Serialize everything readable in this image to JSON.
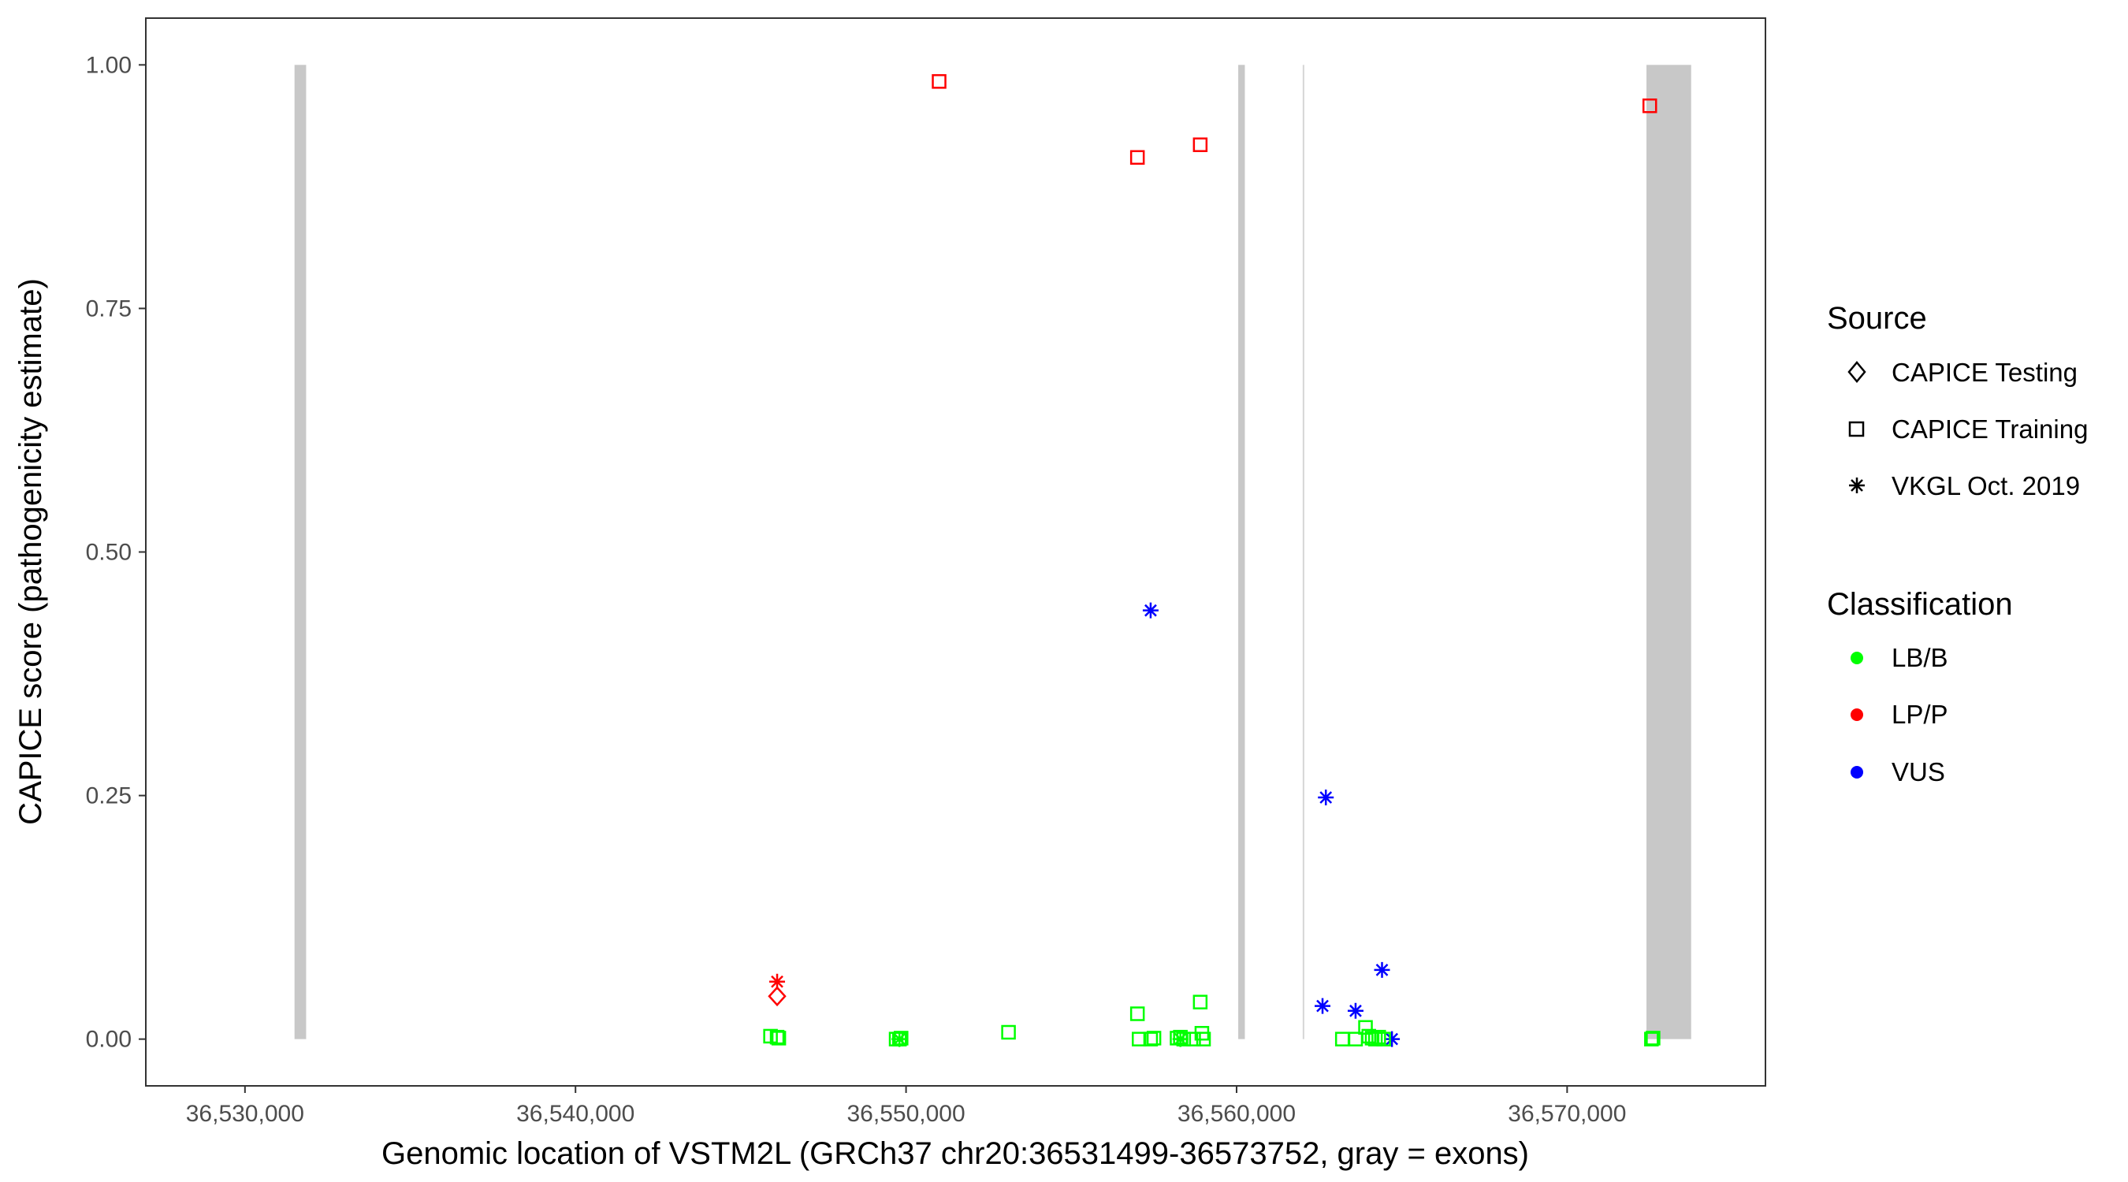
{
  "chart_data": {
    "type": "scatter",
    "xlabel": "Genomic location of VSTM2L (GRCh37 chr20:36531499-36573752, gray = exons)",
    "ylabel": "CAPICE score (pathogenicity estimate)",
    "xlim": [
      36527000,
      36576000
    ],
    "ylim": [
      -0.048,
      1.048
    ],
    "x_ticks": [
      36530000,
      36540000,
      36550000,
      36560000,
      36570000
    ],
    "x_tick_labels": [
      "36,530,000",
      "36,540,000",
      "36,550,000",
      "36,560,000",
      "36,570,000"
    ],
    "y_ticks": [
      0,
      0.25,
      0.5,
      0.75,
      1.0
    ],
    "y_tick_labels": [
      "0.00",
      "0.25",
      "0.50",
      "0.75",
      "1.00"
    ],
    "grid": false,
    "legend_placement": "right",
    "exons": [
      {
        "start": 36531499,
        "end": 36531850
      },
      {
        "start": 36560050,
        "end": 36560250
      },
      {
        "start": 36562000,
        "end": 36562040
      },
      {
        "start": 36572400,
        "end": 36573752
      }
    ],
    "colors": {
      "LB/B": "#00ff00",
      "LP/P": "#ff0000",
      "VUS": "#0000ff",
      "exon": "#c8c8c8",
      "exon_thin": "#d6d6d6"
    },
    "legends": {
      "source": {
        "title": "Source",
        "items": [
          {
            "label": "CAPICE Testing",
            "shape": "diamond"
          },
          {
            "label": "CAPICE Training",
            "shape": "square"
          },
          {
            "label": "VKGL Oct. 2019",
            "shape": "asterisk"
          }
        ]
      },
      "classification": {
        "title": "Classification",
        "items": [
          {
            "label": "LB/B",
            "color": "#00ff00"
          },
          {
            "label": "LP/P",
            "color": "#ff0000"
          },
          {
            "label": "VUS",
            "color": "#0000ff"
          }
        ]
      }
    },
    "series": [
      {
        "source": "CAPICE Training",
        "classification": "LP/P",
        "points": [
          [
            36551000,
            0.983
          ],
          [
            36557000,
            0.905
          ],
          [
            36558900,
            0.918
          ],
          [
            36572500,
            0.958
          ]
        ]
      },
      {
        "source": "CAPICE Testing",
        "classification": "LP/P",
        "points": [
          [
            36546100,
            0.044
          ]
        ]
      },
      {
        "source": "VKGL Oct. 2019",
        "classification": "LP/P",
        "points": [
          [
            36546100,
            0.059
          ]
        ]
      },
      {
        "source": "VKGL Oct. 2019",
        "classification": "VUS",
        "points": [
          [
            36557400,
            0.44
          ],
          [
            36562700,
            0.248
          ],
          [
            36562600,
            0.034
          ],
          [
            36563600,
            0.029
          ],
          [
            36564400,
            0.071
          ],
          [
            36564700,
            0.0
          ]
        ]
      },
      {
        "source": "CAPICE Training",
        "classification": "LB/B",
        "points": [
          [
            36545900,
            0.003
          ],
          [
            36546100,
            0.002
          ],
          [
            36546150,
            0.001
          ],
          [
            36549700,
            0.0
          ],
          [
            36549800,
            0.0
          ],
          [
            36549850,
            0.001
          ],
          [
            36553100,
            0.007
          ],
          [
            36557000,
            0.026
          ],
          [
            36557050,
            0.0
          ],
          [
            36557400,
            0.0
          ],
          [
            36557500,
            0.001
          ],
          [
            36558200,
            0.001
          ],
          [
            36558300,
            0.002
          ],
          [
            36558400,
            0.0
          ],
          [
            36558700,
            0.0
          ],
          [
            36558900,
            0.038
          ],
          [
            36558950,
            0.006
          ],
          [
            36559000,
            0.0
          ],
          [
            36563200,
            0.0
          ],
          [
            36563600,
            0.0
          ],
          [
            36563900,
            0.012
          ],
          [
            36564000,
            0.003
          ],
          [
            36564100,
            0.001
          ],
          [
            36564200,
            0.0
          ],
          [
            36564300,
            0.002
          ],
          [
            36564450,
            0.0
          ],
          [
            36572550,
            0.0
          ],
          [
            36572600,
            0.001
          ]
        ]
      },
      {
        "source": "VKGL Oct. 2019",
        "classification": "LB/B",
        "points": [
          [
            36549800,
            0.0
          ],
          [
            36558300,
            0.0
          ]
        ]
      }
    ]
  }
}
